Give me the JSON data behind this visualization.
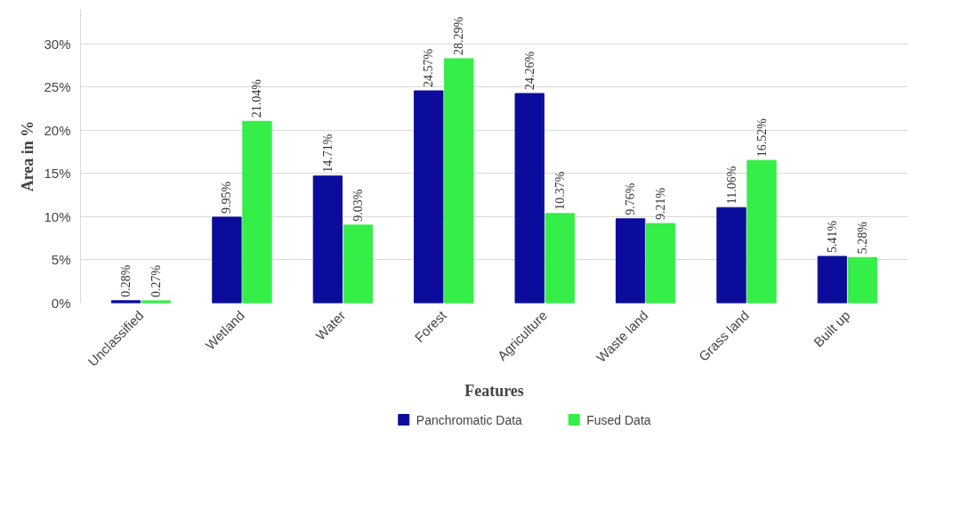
{
  "chart_data": {
    "type": "bar",
    "xlabel": "Features",
    "ylabel": "Area in %",
    "categories": [
      "Unclassified",
      "Wetland",
      "Water",
      "Forest",
      "Agriculture",
      "Waste land",
      "Grass land",
      "Built up"
    ],
    "series": [
      {
        "name": "Panchromatic Data",
        "color": "#0c0c9c",
        "values": [
          0.28,
          9.95,
          14.71,
          24.57,
          24.26,
          9.76,
          11.06,
          5.41
        ],
        "value_labels": [
          "0.28%",
          "9.95%",
          "14.71%",
          "24.57%",
          "24.26%",
          "9.76%",
          "11.06%",
          "5.41%"
        ]
      },
      {
        "name": "Fused Data",
        "color": "#35ee48",
        "values": [
          0.27,
          21.04,
          9.03,
          28.29,
          10.37,
          9.21,
          16.52,
          5.28
        ],
        "value_labels": [
          "0.27%",
          "21.04%",
          "9.03%",
          "28.29%",
          "10.37%",
          "9.21%",
          "16.52%",
          "5.28%"
        ]
      }
    ],
    "ylim": [
      0,
      34
    ],
    "yticks": [
      {
        "value": 0,
        "label": "0%"
      },
      {
        "value": 5,
        "label": "5%"
      },
      {
        "value": 10,
        "label": "10%"
      },
      {
        "value": 15,
        "label": "15%"
      },
      {
        "value": 20,
        "label": "20%"
      },
      {
        "value": 25,
        "label": "25%"
      },
      {
        "value": 30,
        "label": "30%"
      }
    ],
    "grid": "y",
    "legend": "bottom"
  }
}
